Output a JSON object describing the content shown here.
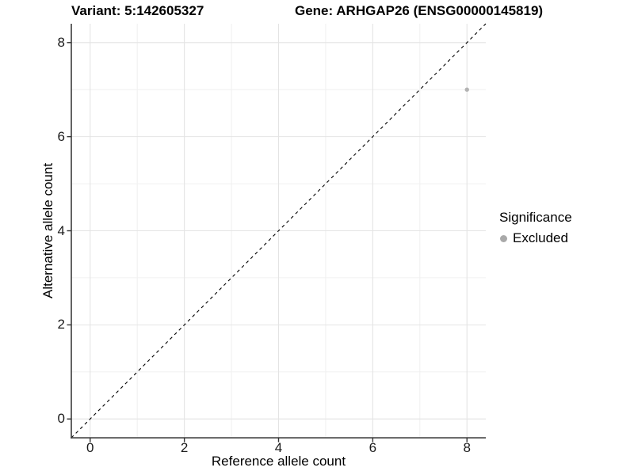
{
  "chart_data": {
    "type": "scatter",
    "title_left": "Variant: 5:142605327",
    "title_right": "Gene: ARHGAP26 (ENSG00000145819)",
    "xlabel": "Reference allele count",
    "ylabel": "Alternative allele count",
    "xlim": [
      -0.4,
      8.4
    ],
    "ylim": [
      -0.4,
      8.4
    ],
    "x_ticks": [
      0,
      2,
      4,
      6,
      8
    ],
    "y_ticks": [
      0,
      2,
      4,
      6,
      8
    ],
    "x_minor_ticks": [
      1,
      3,
      5,
      7
    ],
    "y_minor_ticks": [
      1,
      3,
      5,
      7
    ],
    "grid": true,
    "identity_line": {
      "style": "dashed",
      "color": "#000000",
      "from": [
        -0.4,
        -0.4
      ],
      "to": [
        8.4,
        8.4
      ]
    },
    "series": [
      {
        "name": "Excluded",
        "color": "#b3b3b3",
        "points": [
          {
            "x": 8,
            "y": 7
          }
        ]
      }
    ],
    "legend": {
      "title": "Significance",
      "position": "right",
      "items": [
        {
          "label": "Excluded",
          "color": "#a9a9a9"
        }
      ]
    }
  },
  "colors": {
    "background": "#ffffff",
    "axis_line": "#3c3c3c",
    "tick_mark": "#333333",
    "grid_major": "#e4e4e4",
    "grid_minor": "#f0f0f0",
    "text": "#000000"
  }
}
